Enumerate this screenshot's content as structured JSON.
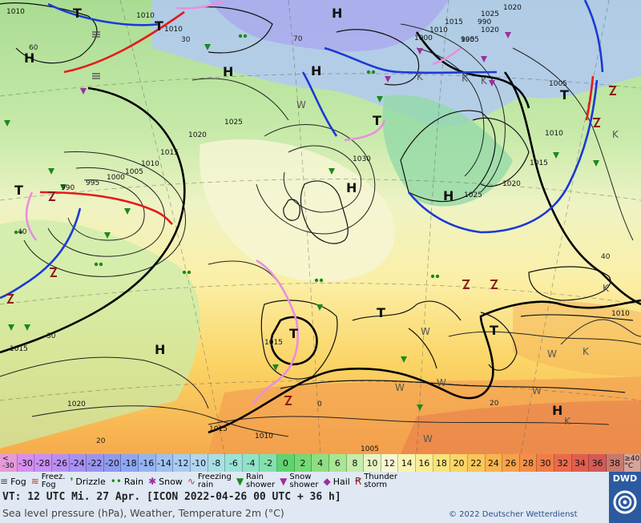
{
  "map": {
    "highs": [
      "H",
      "H",
      "H",
      "H",
      "H",
      "H",
      "H",
      "H"
    ],
    "lows": [
      "T",
      "T",
      "T",
      "T",
      "T",
      "T",
      "T",
      "T"
    ],
    "isobar_labels": [
      "1010",
      "1010",
      "1010",
      "1015",
      "1020",
      "1025",
      "1030",
      "1025",
      "1020",
      "1015",
      "1010",
      "1005",
      "1000",
      "995",
      "990",
      "1005",
      "1010",
      "1015",
      "1020",
      "1025",
      "1015",
      "1015",
      "1010",
      "1005",
      "1010",
      "1020",
      "990",
      "995",
      "1000",
      "1005",
      "1010",
      "1015",
      "1020"
    ],
    "isotherm_labels": [
      "40",
      "30",
      "20",
      "60",
      "70",
      "40",
      "30",
      "20",
      "0"
    ],
    "warm_labels": [
      "W",
      "W",
      "W",
      "W",
      "W",
      "W",
      "W"
    ],
    "cold_labels": [
      "K",
      "K",
      "K",
      "K",
      "K",
      "K",
      "K"
    ]
  },
  "scale": {
    "cells": [
      {
        "label": "<\n-30",
        "bg": "#e49bd8"
      },
      {
        "label": "-30",
        "bg": "#d78ff0"
      },
      {
        "label": "-28",
        "bg": "#c990f5"
      },
      {
        "label": "-26",
        "bg": "#b98ff4"
      },
      {
        "label": "-24",
        "bg": "#a891f3"
      },
      {
        "label": "-22",
        "bg": "#9a94f0"
      },
      {
        "label": "-20",
        "bg": "#8e9af0"
      },
      {
        "label": "-18",
        "bg": "#8ea6f5"
      },
      {
        "label": "-16",
        "bg": "#96b4f5"
      },
      {
        "label": "-14",
        "bg": "#9fc1f4"
      },
      {
        "label": "-12",
        "bg": "#a7ccf2"
      },
      {
        "label": "-10",
        "bg": "#b2d6ef"
      },
      {
        "label": "-8",
        "bg": "#a7dfe6"
      },
      {
        "label": "-6",
        "bg": "#9ae2d8"
      },
      {
        "label": "-4",
        "bg": "#8fe3c6"
      },
      {
        "label": "-2",
        "bg": "#83e1ad"
      },
      {
        "label": "0",
        "bg": "#5fd36f"
      },
      {
        "label": "2",
        "bg": "#74d974"
      },
      {
        "label": "4",
        "bg": "#8fde82"
      },
      {
        "label": "6",
        "bg": "#a9e595"
      },
      {
        "label": "8",
        "bg": "#c5ecaa"
      },
      {
        "label": "10",
        "bg": "#e6f5c3"
      },
      {
        "label": "12",
        "bg": "#f8f6cf"
      },
      {
        "label": "14",
        "bg": "#fbf3b0"
      },
      {
        "label": "16",
        "bg": "#fbec96"
      },
      {
        "label": "18",
        "bg": "#fbe37a"
      },
      {
        "label": "20",
        "bg": "#fbd666"
      },
      {
        "label": "22",
        "bg": "#fac65a"
      },
      {
        "label": "24",
        "bg": "#f8b450"
      },
      {
        "label": "26",
        "bg": "#f6a24a"
      },
      {
        "label": "28",
        "bg": "#f48f48"
      },
      {
        "label": "30",
        "bg": "#f07c48"
      },
      {
        "label": "32",
        "bg": "#ea6a4a"
      },
      {
        "label": "34",
        "bg": "#e15e4f"
      },
      {
        "label": "36",
        "bg": "#d35a56"
      },
      {
        "label": "38",
        "bg": "#c57a6c"
      },
      {
        "label": "≥40\n°C",
        "bg": "#d5a49b"
      }
    ]
  },
  "legend": [
    {
      "key": "fog",
      "symbol": "≡",
      "label": "Fog",
      "color": "#444444"
    },
    {
      "key": "freezing-fog",
      "symbol": "≋",
      "label": "Freez.\nFog",
      "color": "#c0392b"
    },
    {
      "key": "drizzle",
      "symbol": "❜",
      "label": "Drizzle",
      "color": "#1a8a1a"
    },
    {
      "key": "rain",
      "symbol": "••",
      "label": "Rain",
      "color": "#1a8a1a"
    },
    {
      "key": "snow",
      "symbol": "✱",
      "label": "Snow",
      "color": "#9b2f9b"
    },
    {
      "key": "freezing-rain",
      "symbol": "∿",
      "label": "Freezing\nrain",
      "color": "#c0392b"
    },
    {
      "key": "rain-shower",
      "symbol": "▼",
      "label": "Rain\nshower",
      "color": "#1a8a1a"
    },
    {
      "key": "snow-shower",
      "symbol": "▼",
      "label": "Snow\nshower",
      "color": "#9b2f9b"
    },
    {
      "key": "hail",
      "symbol": "◆",
      "label": "Hail",
      "color": "#9b2f9b"
    },
    {
      "key": "thunderstorm",
      "symbol": "Ꞧ",
      "label": "Thunder\nstorm",
      "color": "#8b1a1a"
    }
  ],
  "info": {
    "valid_time": "VT: 12 UTC Mi.  27 Apr. [ICON 2022-04-26  00 UTC + 36 h]",
    "subtitle": "Sea level pressure (hPa), Weather, Temperature 2m (°C)",
    "copyright": "© 2022 Deutscher Wetterdienst"
  },
  "logo": {
    "text": "DWD"
  },
  "colors": {
    "cold_front": "#1a3ad6",
    "warm_front": "#e21b1b",
    "occluded_front": "#e98ee0",
    "isobar": "#222222"
  }
}
